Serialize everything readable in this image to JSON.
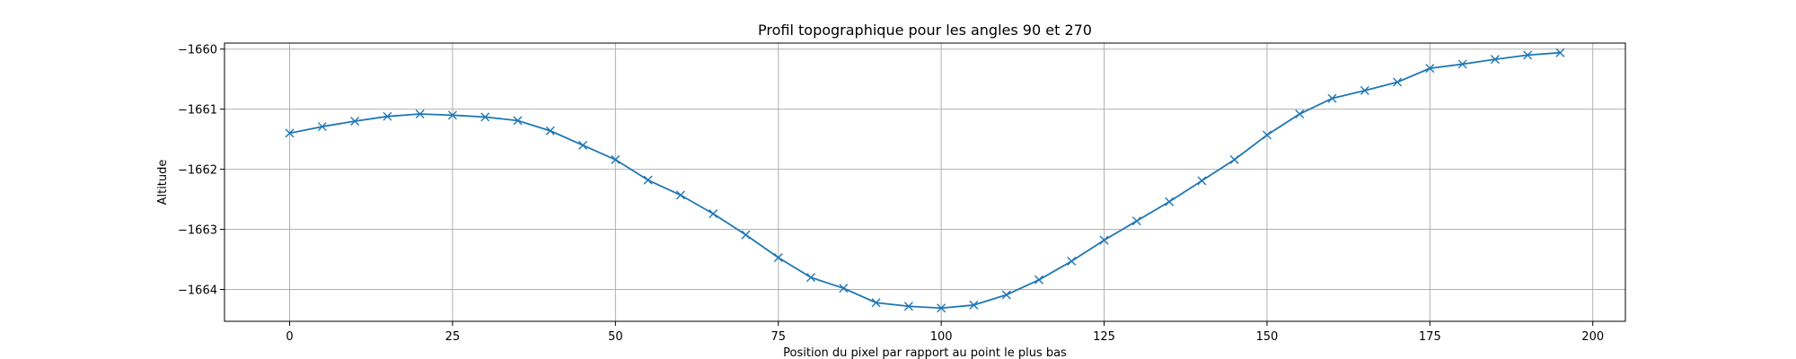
{
  "chart_data": {
    "type": "line",
    "title": "Profil topographique pour les angles 90 et 270",
    "xlabel": "Position du pixel par rapport au point le plus bas",
    "ylabel": "Altitude",
    "xlim": [
      -10,
      205
    ],
    "ylim": [
      -1664.53,
      -1659.9
    ],
    "x_ticks": [
      0,
      25,
      50,
      75,
      100,
      125,
      150,
      175,
      200
    ],
    "y_ticks": [
      -1664,
      -1663,
      -1662,
      -1661,
      -1660
    ],
    "x_tick_labels": [
      "0",
      "25",
      "50",
      "75",
      "100",
      "125",
      "150",
      "175",
      "200"
    ],
    "y_tick_labels": [
      "−1664",
      "−1663",
      "−1662",
      "−1661",
      "−1660"
    ],
    "grid": true,
    "series": [
      {
        "color": "#1f77b4",
        "marker": "x",
        "x": [
          0,
          5,
          10,
          15,
          20,
          25,
          30,
          35,
          40,
          45,
          50,
          55,
          60,
          65,
          70,
          75,
          80,
          85,
          90,
          95,
          100,
          105,
          110,
          115,
          120,
          125,
          130,
          135,
          140,
          145,
          150,
          155,
          160,
          165,
          170,
          175,
          180,
          185,
          190,
          195
        ],
        "y": [
          -1661.4,
          -1661.29,
          -1661.2,
          -1661.12,
          -1661.08,
          -1661.1,
          -1661.13,
          -1661.19,
          -1661.36,
          -1661.6,
          -1661.84,
          -1662.18,
          -1662.43,
          -1662.74,
          -1663.09,
          -1663.47,
          -1663.8,
          -1663.98,
          -1664.22,
          -1664.28,
          -1664.31,
          -1664.26,
          -1664.09,
          -1663.84,
          -1663.53,
          -1663.18,
          -1662.86,
          -1662.54,
          -1662.19,
          -1661.84,
          -1661.43,
          -1661.08,
          -1660.82,
          -1660.69,
          -1660.55,
          -1660.32,
          -1660.25,
          -1660.17,
          -1660.1,
          -1660.06
        ]
      }
    ]
  }
}
